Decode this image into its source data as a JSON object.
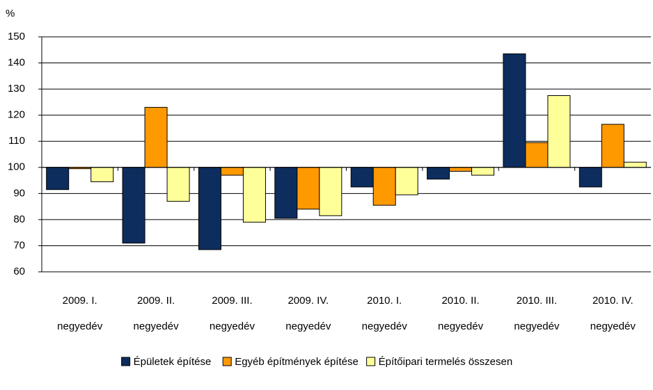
{
  "chart_data": {
    "type": "bar",
    "ylabel": "%",
    "categories": [
      [
        "2009. I.",
        "negyedév"
      ],
      [
        "2009. II.",
        "negyedév"
      ],
      [
        "2009. III.",
        "negyedév"
      ],
      [
        "2009. IV.",
        "negyedév"
      ],
      [
        "2010. I.",
        "negyedév"
      ],
      [
        "2010. II.",
        "negyedév"
      ],
      [
        "2010. III.",
        "negyedév"
      ],
      [
        "2010. IV.",
        "negyedév"
      ]
    ],
    "series": [
      {
        "name": "Épületek építése",
        "color": "#0d2d5e",
        "values": [
          91.5,
          71,
          68.5,
          80.5,
          92.5,
          95.5,
          143.5,
          92.5
        ]
      },
      {
        "name": "Egyéb építmények építése",
        "color": "#ff9900",
        "values": [
          99.5,
          123,
          97,
          84,
          85.5,
          98.5,
          109.5,
          116.5
        ]
      },
      {
        "name": "Építőipari termelés összesen",
        "color": "#ffff99",
        "values": [
          94.5,
          87,
          79,
          81.5,
          89.5,
          97,
          127.5,
          102
        ]
      }
    ],
    "baseline": 100,
    "ylim": [
      60,
      150
    ],
    "yticks": [
      60,
      70,
      80,
      90,
      100,
      110,
      120,
      130,
      140,
      150
    ],
    "grid": true,
    "legend": "bottom"
  }
}
